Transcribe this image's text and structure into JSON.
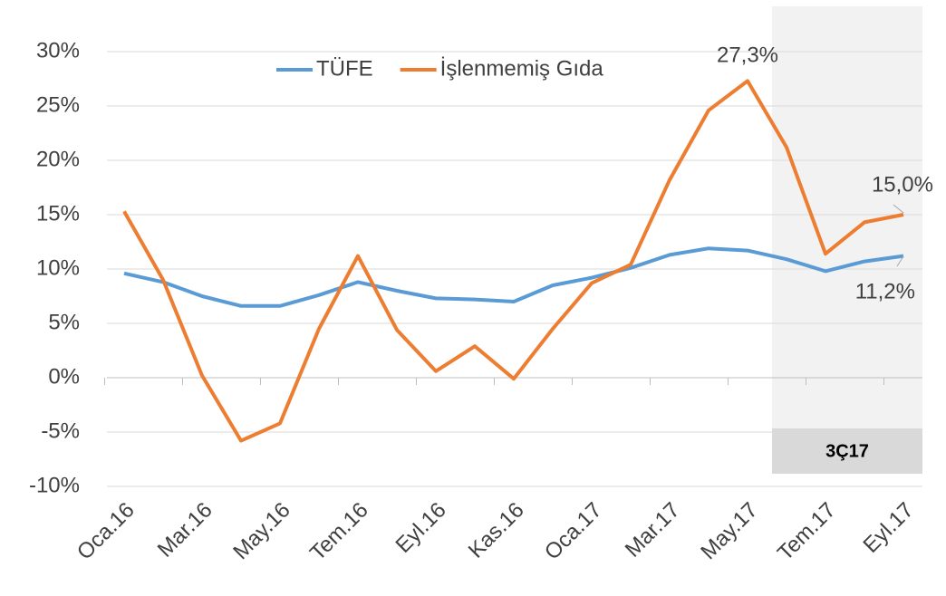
{
  "chart_data": {
    "type": "line",
    "categories": [
      "Oca.16",
      null,
      "Mar.16",
      null,
      "May.16",
      null,
      "Tem.16",
      null,
      "Eyl.16",
      null,
      "Kas.16",
      null,
      "Oca.17",
      null,
      "Mar.17",
      null,
      "May.17",
      null,
      "Tem.17",
      null,
      "Eyl.17"
    ],
    "series": [
      {
        "name": "TÜFE",
        "color": "#5b9bd5",
        "values": [
          9.6,
          8.8,
          7.5,
          6.6,
          6.6,
          7.6,
          8.8,
          8.0,
          7.3,
          7.2,
          7.0,
          8.5,
          9.2,
          10.1,
          11.3,
          11.9,
          11.7,
          10.9,
          9.8,
          10.7,
          11.2
        ],
        "value_labels": [
          null,
          null,
          null,
          null,
          null,
          null,
          null,
          null,
          null,
          null,
          null,
          null,
          null,
          null,
          null,
          null,
          null,
          null,
          null,
          null,
          "11,2%"
        ]
      },
      {
        "name": "İşlenmemiş Gıda",
        "color": "#ed7d31",
        "values": [
          15.3,
          9.0,
          0.2,
          -5.8,
          -4.2,
          4.5,
          11.2,
          4.4,
          0.6,
          2.9,
          -0.1,
          4.5,
          8.7,
          10.4,
          18.2,
          24.6,
          27.3,
          21.2,
          11.4,
          14.3,
          15.0
        ],
        "value_labels": [
          null,
          null,
          null,
          null,
          null,
          null,
          null,
          null,
          null,
          null,
          null,
          null,
          null,
          null,
          null,
          null,
          "27,3%",
          null,
          null,
          null,
          "15,0%"
        ]
      }
    ],
    "ylim": [
      -10,
      30
    ],
    "yticks": [
      {
        "value": -10,
        "label": "-10%"
      },
      {
        "value": -5,
        "label": "-5%"
      },
      {
        "value": 0,
        "label": "0%"
      },
      {
        "value": 5,
        "label": "5%"
      },
      {
        "value": 10,
        "label": "10%"
      },
      {
        "value": 15,
        "label": "15%"
      },
      {
        "value": 20,
        "label": "20%"
      },
      {
        "value": 25,
        "label": "25%"
      },
      {
        "value": 30,
        "label": "30%"
      }
    ],
    "grid": true,
    "legend": "top",
    "annotations": [
      "3Ç17"
    ]
  }
}
